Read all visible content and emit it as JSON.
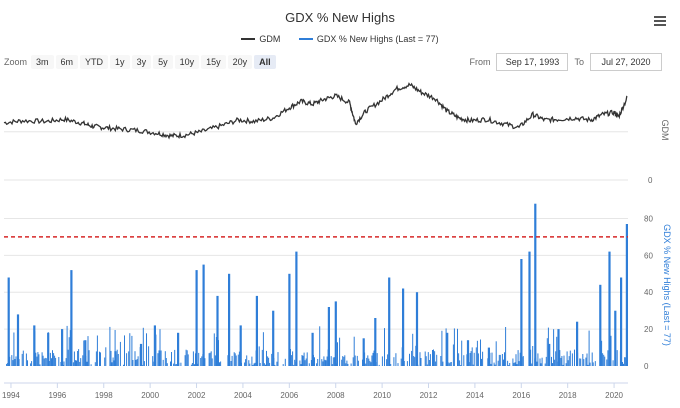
{
  "title": "GDX % New Highs",
  "legend": [
    {
      "name": "GDM",
      "color": "#333333"
    },
    {
      "name": "GDX % New Highs (Last = 77)",
      "color": "#2f7ed8"
    }
  ],
  "toolbar": {
    "zoom_label": "Zoom",
    "buttons": [
      "3m",
      "6m",
      "YTD",
      "1y",
      "3y",
      "5y",
      "10y",
      "15y",
      "20y",
      "All"
    ],
    "active": "All",
    "from_label": "From",
    "from_value": "Sep 17, 1993",
    "to_label": "To",
    "to_value": "Jul 27, 2020"
  },
  "colors": {
    "gdm": "#333333",
    "breadth": "#2f7ed8",
    "threshold": "#d62728",
    "grid": "#e6e6e6"
  },
  "icons": {
    "menu": "hamburger-menu-icon"
  },
  "chart_data": [
    {
      "type": "line",
      "title": "GDX % New Highs",
      "ylabel": "GDM",
      "y_ticks": [
        0
      ],
      "x_ticks": [
        "1994",
        "1996",
        "1998",
        "2000",
        "2002",
        "2004",
        "2006",
        "2008",
        "2010",
        "2012",
        "2014",
        "2016",
        "2018",
        "2020"
      ],
      "series": [
        {
          "name": "GDM",
          "x": [
            1993.7,
            1994.5,
            1995.5,
            1996.3,
            1997.0,
            1997.5,
            1998.0,
            1998.7,
            1999.5,
            2000.3,
            2000.9,
            2001.5,
            2002.2,
            2003.0,
            2003.8,
            2004.5,
            2005.3,
            2006.0,
            2006.5,
            2007.0,
            2007.5,
            2008.0,
            2008.6,
            2008.85,
            2009.3,
            2010.0,
            2010.6,
            2011.2,
            2011.7,
            2012.3,
            2012.8,
            2013.3,
            2013.8,
            2014.5,
            2015.2,
            2015.9,
            2016.5,
            2017.0,
            2017.6,
            2018.3,
            2019.0,
            2019.5,
            2020.0,
            2020.2,
            2020.57
          ],
          "values": [
            830,
            860,
            850,
            880,
            830,
            780,
            760,
            740,
            720,
            680,
            640,
            650,
            700,
            780,
            870,
            850,
            900,
            1050,
            1140,
            1100,
            1170,
            1220,
            1120,
            820,
            1000,
            1160,
            1320,
            1380,
            1270,
            1180,
            1000,
            900,
            860,
            880,
            820,
            760,
            950,
            870,
            880,
            900,
            870,
            950,
            980,
            920,
            1200
          ]
        }
      ]
    },
    {
      "type": "bar",
      "ylabel": "GDX % New Highs (Last = 77)",
      "ylim": [
        0,
        90
      ],
      "y_ticks": [
        0,
        20,
        40,
        60,
        80
      ],
      "threshold": 70,
      "spikes": {
        "x": [
          1993.9,
          1994.3,
          1995.0,
          1995.6,
          1996.2,
          1996.6,
          1997.2,
          1998.5,
          1999.6,
          2000.2,
          2001.2,
          2002.0,
          2002.3,
          2002.9,
          2003.4,
          2003.9,
          2004.6,
          2005.3,
          2006.0,
          2006.3,
          2007.0,
          2007.7,
          2008.0,
          2009.2,
          2009.7,
          2010.3,
          2010.9,
          2011.5,
          2012.8,
          2013.7,
          2014.6,
          2016.0,
          2016.35,
          2016.6,
          2017.2,
          2017.6,
          2018.4,
          2019.4,
          2019.8,
          2020.05,
          2020.3,
          2020.55
        ],
        "values": [
          48,
          28,
          22,
          18,
          20,
          52,
          14,
          8,
          12,
          22,
          18,
          52,
          55,
          38,
          50,
          22,
          38,
          30,
          50,
          62,
          18,
          32,
          35,
          15,
          26,
          48,
          42,
          40,
          18,
          14,
          10,
          58,
          62,
          88,
          12,
          20,
          24,
          44,
          62,
          30,
          48,
          77
        ]
      },
      "note": "GDX % New Highs last value = 77"
    }
  ]
}
